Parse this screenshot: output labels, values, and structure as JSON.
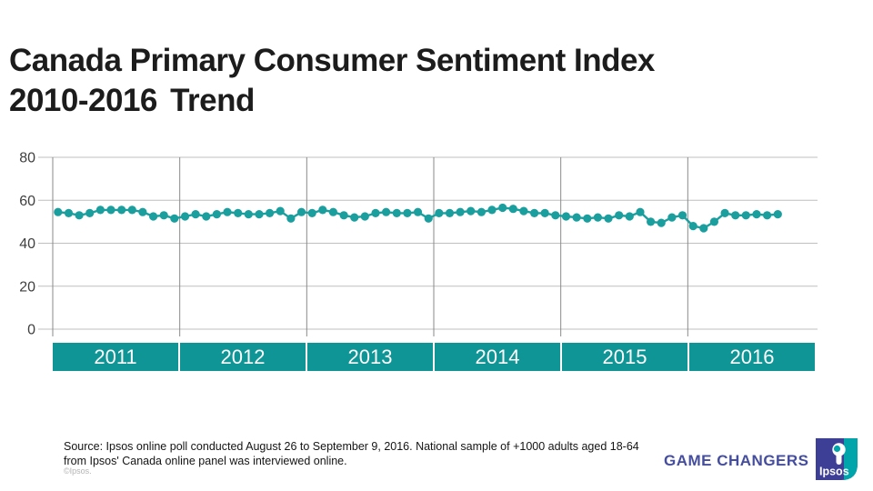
{
  "slide": {
    "title_line1": "Canada Primary Consumer Sentiment Index",
    "title_line2": "2010-2016 Trend",
    "source_line1": "Source: Ipsos online poll conducted August 26 to September 9, 2016. National sample of +1000 adults aged 18-64",
    "source_line2": "from Ipsos' Canada online panel was interviewed online.",
    "copyright": "©Ipsos.",
    "tagline": "GAME CHANGERS",
    "logo_text": "Ipsos"
  },
  "colors": {
    "series_teal": "#1a9e9e",
    "band_teal": "#0f9595",
    "grid_horizontal": "#bfbfbf",
    "grid_vertical": "#8a8a8a",
    "tick_label": "#3f3f3f",
    "tagline_indigo": "#454d9e",
    "logo_indigo": "#3d3e96",
    "logo_teal": "#00a5ac"
  },
  "chart_data": {
    "type": "line",
    "title": "Canada Primary Consumer Sentiment Index 2010-2016 Trend",
    "xlabel": "",
    "ylabel": "",
    "ylim": [
      0,
      80
    ],
    "yticks": [
      0,
      20,
      40,
      60,
      80
    ],
    "grid": "horizontal gridlines + vertical year-boundary lines",
    "legend": "none",
    "x_years": [
      "2011",
      "2012",
      "2013",
      "2014",
      "2015",
      "2016"
    ],
    "months_per_year": 12,
    "series": [
      {
        "name": "Primary Consumer Sentiment Index (monthly)",
        "start_month": "2011-01",
        "end_month": "2016-09",
        "values": [
          54.5,
          54,
          53,
          54,
          55.5,
          55.5,
          55.5,
          55.5,
          54.5,
          52.5,
          53,
          51.5,
          52.5,
          53.5,
          52.5,
          53.5,
          54.5,
          54,
          53.5,
          53.5,
          54,
          55,
          51.5,
          54.5,
          54,
          55.5,
          54.5,
          53,
          52,
          52.5,
          54,
          54.5,
          54,
          54,
          54.5,
          51.5,
          54,
          54,
          54.5,
          55,
          54.5,
          55.5,
          56.5,
          56,
          55,
          54,
          54,
          53,
          52.5,
          52,
          51.5,
          52,
          51.5,
          53,
          52.5,
          54.5,
          50,
          49.5,
          52,
          53,
          48,
          47,
          50,
          54,
          53,
          53,
          53.5,
          53,
          53.5
        ]
      }
    ]
  }
}
